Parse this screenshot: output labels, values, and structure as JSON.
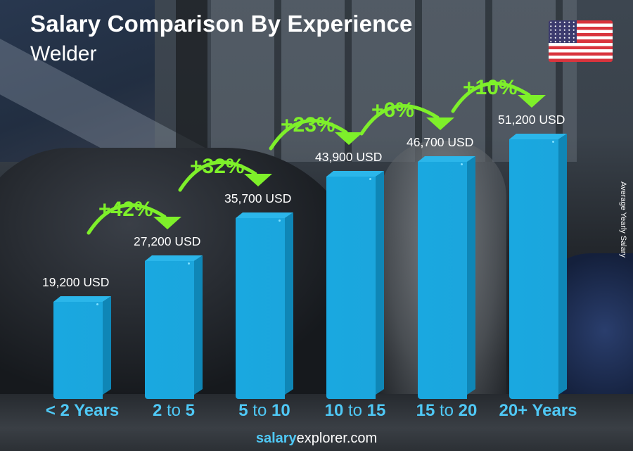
{
  "header": {
    "title": "Salary Comparison By Experience",
    "subtitle": "Welder",
    "flag": "us-flag-icon"
  },
  "axis": {
    "ylabel": "Average Yearly Salary"
  },
  "bars": [
    {
      "category_parts": [
        "< 2 Years"
      ],
      "value_label": "19,200 USD",
      "value": 19200
    },
    {
      "category_parts": [
        "2",
        " to ",
        "5"
      ],
      "value_label": "27,200 USD",
      "value": 27200
    },
    {
      "category_parts": [
        "5",
        " to ",
        "10"
      ],
      "value_label": "35,700 USD",
      "value": 35700
    },
    {
      "category_parts": [
        "10",
        " to ",
        "15"
      ],
      "value_label": "43,900 USD",
      "value": 43900
    },
    {
      "category_parts": [
        "15",
        " to ",
        "20"
      ],
      "value_label": "46,700 USD",
      "value": 46700
    },
    {
      "category_parts": [
        "20+ Years"
      ],
      "value_label": "51,200 USD",
      "value": 51200
    }
  ],
  "changes": [
    "+42%",
    "+32%",
    "+23%",
    "+6%",
    "+10%"
  ],
  "footer": {
    "brand": "salary",
    "rest": "explorer.com"
  },
  "colors": {
    "bar": "#1ba6dd",
    "bar_side": "#0f86b6",
    "change": "#7ef02a",
    "category": "#4fc8f5"
  },
  "chart_data": {
    "type": "bar",
    "title": "Salary Comparison By Experience",
    "subtitle": "Welder",
    "categories": [
      "< 2 Years",
      "2 to 5",
      "5 to 10",
      "10 to 15",
      "15 to 20",
      "20+ Years"
    ],
    "values": [
      19200,
      27200,
      35700,
      43900,
      46700,
      51200
    ],
    "value_labels": [
      "19,200 USD",
      "27,200 USD",
      "35,700 USD",
      "43,900 USD",
      "46,700 USD",
      "51,200 USD"
    ],
    "annotations": [
      "+42%",
      "+32%",
      "+23%",
      "+6%",
      "+10%"
    ],
    "xlabel": "",
    "ylabel": "Average Yearly Salary",
    "unit": "USD",
    "grid": false,
    "legend": null
  }
}
